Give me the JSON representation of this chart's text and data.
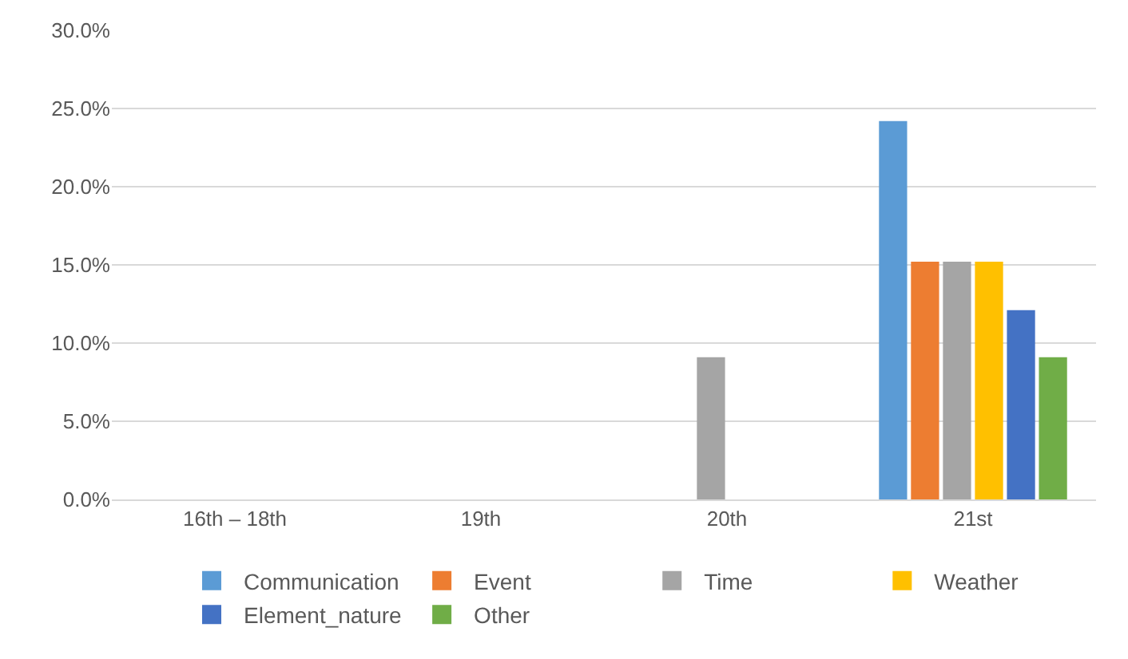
{
  "chart_data": {
    "type": "bar",
    "categories": [
      "16th – 18th",
      "19th",
      "20th",
      "21st"
    ],
    "series": [
      {
        "name": "Communication",
        "color": "#5b9bd5",
        "values": [
          0,
          0,
          0,
          24.2
        ]
      },
      {
        "name": "Event",
        "color": "#ed7d31",
        "values": [
          0,
          0,
          0,
          15.2
        ]
      },
      {
        "name": "Time",
        "color": "#a5a5a5",
        "values": [
          0,
          0,
          9.1,
          15.2
        ]
      },
      {
        "name": "Weather",
        "color": "#ffc000",
        "values": [
          0,
          0,
          0,
          15.2
        ]
      },
      {
        "name": "Element_nature",
        "color": "#4472c4",
        "values": [
          0,
          0,
          0,
          12.1
        ]
      },
      {
        "name": "Other",
        "color": "#70ad47",
        "values": [
          0,
          0,
          0,
          9.1
        ]
      }
    ],
    "ylim": [
      0,
      30
    ],
    "yticks": [
      {
        "value": 0,
        "label": "0.0%"
      },
      {
        "value": 5,
        "label": "5.0%"
      },
      {
        "value": 10,
        "label": "10.0%"
      },
      {
        "value": 15,
        "label": "15.0%"
      },
      {
        "value": 20,
        "label": "20.0%"
      },
      {
        "value": 25,
        "label": "25.0%"
      },
      {
        "value": 30,
        "label": "30.0%"
      }
    ],
    "grid": "y",
    "legend": "bottom"
  }
}
